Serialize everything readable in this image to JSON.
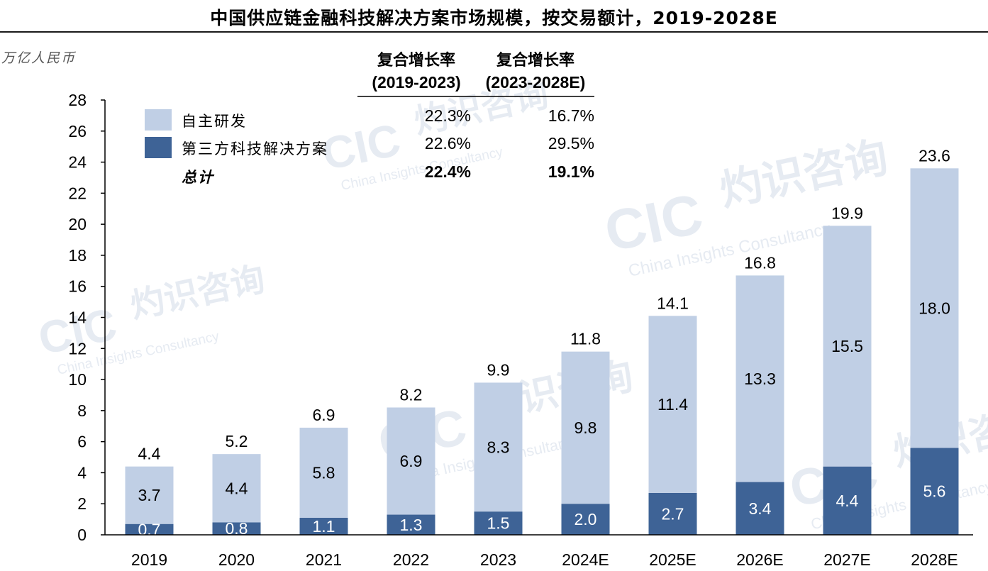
{
  "title": "中国供应链金融科技解决方案市场规模，按交易额计，2019-2028E",
  "unit_label": "万亿人民币",
  "watermark": {
    "cn": "灼识咨询",
    "en": "China Insights Consultancy",
    "logo": "CIC"
  },
  "colors": {
    "in_house": "#c0cfe5",
    "third_party": "#3e6396",
    "title_rule": "#1a1a1a"
  },
  "legend": [
    {
      "name": "自主研发",
      "color": "#c0cfe5"
    },
    {
      "name": "第三方科技解决方案",
      "color": "#3e6396"
    },
    {
      "name": "总计",
      "color": ""
    }
  ],
  "cagr": {
    "headers": [
      {
        "line1": "复合增长率",
        "line2": "(2019-2023)"
      },
      {
        "line1": "复合增长率",
        "line2": "(2023-2028E)"
      }
    ],
    "rows": [
      {
        "series": "自主研发",
        "values": [
          "22.3%",
          "16.7%"
        ],
        "bold": false
      },
      {
        "series": "第三方科技解决方案",
        "values": [
          "22.6%",
          "29.5%"
        ],
        "bold": false
      },
      {
        "series": "总计",
        "values": [
          "22.4%",
          "19.1%"
        ],
        "bold": true
      }
    ]
  },
  "chart_data": {
    "type": "bar",
    "stacked": true,
    "categories": [
      "2019",
      "2020",
      "2021",
      "2022",
      "2023",
      "2024E",
      "2025E",
      "2026E",
      "2027E",
      "2028E"
    ],
    "series": [
      {
        "name": "第三方科技解决方案",
        "values": [
          0.7,
          0.8,
          1.1,
          1.3,
          1.5,
          2.0,
          2.7,
          3.4,
          4.4,
          5.6
        ]
      },
      {
        "name": "自主研发",
        "values": [
          3.7,
          4.4,
          5.8,
          6.9,
          8.3,
          9.8,
          11.4,
          13.3,
          15.5,
          18.0
        ]
      }
    ],
    "totals": [
      4.4,
      5.2,
      6.9,
      8.2,
      9.9,
      11.8,
      14.1,
      16.8,
      19.9,
      23.6
    ],
    "ylim": [
      0,
      28
    ],
    "yticks": [
      0,
      2,
      4,
      6,
      8,
      10,
      12,
      14,
      16,
      18,
      20,
      22,
      24,
      26,
      28
    ],
    "ylabel": "万亿人民币",
    "xlabel": "",
    "grid": false,
    "legend_position": "top-left"
  }
}
